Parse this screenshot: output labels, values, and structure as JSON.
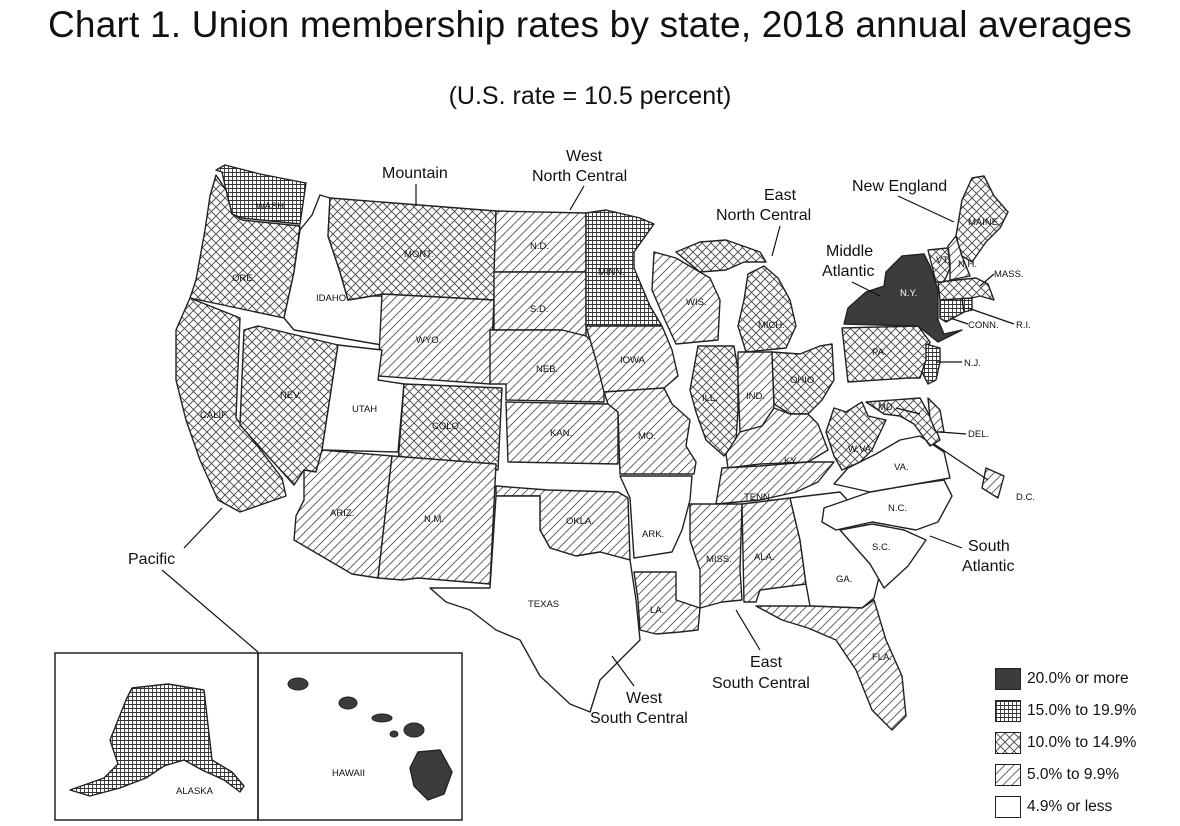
{
  "title": "Chart 1. Union membership rates by state, 2018 annual averages",
  "subtitle": "(U.S. rate = 10.5 percent)",
  "legend": [
    {
      "label": "20.0% or more",
      "pattern": "p4"
    },
    {
      "label": "15.0% to 19.9%",
      "pattern": "p3"
    },
    {
      "label": "10.0% to 14.9%",
      "pattern": "p2"
    },
    {
      "label": "5.0% to 9.9%",
      "pattern": "p1"
    },
    {
      "label": "4.9% or less",
      "pattern": "p0"
    }
  ],
  "regions": {
    "pacific": "Pacific",
    "mountain": "Mountain",
    "wnc_1": "West",
    "wnc_2": "North Central",
    "enc_1": "East",
    "enc_2": "North Central",
    "ne": "New England",
    "ma_1": "Middle",
    "ma_2": "Atlantic",
    "sa_1": "South",
    "sa_2": "Atlantic",
    "esc_1": "East",
    "esc_2": "South Central",
    "wsc_1": "West",
    "wsc_2": "South Central"
  },
  "states": {
    "wash": "WASH.",
    "ore": "ORE.",
    "calif": "CALIF.",
    "idaho": "IDAHO",
    "nev": "NEV.",
    "mont": "MONT.",
    "wyo": "WYO.",
    "utah": "UTAH",
    "colo": "COLO.",
    "ariz": "ARIZ.",
    "nm": "N.M.",
    "nd": "N.D.",
    "sd": "S.D.",
    "neb": "NEB.",
    "kan": "KAN.",
    "okla": "OKLA.",
    "texas": "TEXAS",
    "minn": "MINN.",
    "iowa": "IOWA",
    "mo": "MO.",
    "ark": "ARK.",
    "la": "LA.",
    "wis": "WIS.",
    "mich": "MICH.",
    "ill": "ILL.",
    "ind": "IND.",
    "ohio": "OHIO",
    "ky": "KY.",
    "tenn": "TENN.",
    "miss": "MISS.",
    "ala": "ALA.",
    "ga": "GA.",
    "fla": "FLA.",
    "sc": "S.C.",
    "nc": "N.C.",
    "va": "VA.",
    "wva": "W.VA.",
    "md": "MD.",
    "del": "DEL.",
    "dc": "D.C.",
    "pa": "PA.",
    "nj": "N.J.",
    "ny": "N.Y.",
    "conn": "CONN.",
    "ri": "R.I.",
    "mass": "MASS.",
    "vt": "VT.",
    "nh": "N.H.",
    "maine": "MAINE",
    "alaska": "ALASKA",
    "hawaii": "HAWAII"
  },
  "state_categories": {
    "wash": "15.0% to 19.9%",
    "ore": "10.0% to 14.9%",
    "calif": "10.0% to 14.9%",
    "idaho": "4.9% or less",
    "nev": "10.0% to 14.9%",
    "mont": "10.0% to 14.9%",
    "wyo": "5.0% to 9.9%",
    "utah": "4.9% or less",
    "colo": "10.0% to 14.9%",
    "ariz": "5.0% to 9.9%",
    "nm": "5.0% to 9.9%",
    "nd": "5.0% to 9.9%",
    "sd": "5.0% to 9.9%",
    "neb": "5.0% to 9.9%",
    "kan": "5.0% to 9.9%",
    "okla": "5.0% to 9.9%",
    "texas": "4.9% or less",
    "minn": "15.0% to 19.9%",
    "iowa": "5.0% to 9.9%",
    "mo": "5.0% to 9.9%",
    "ark": "4.9% or less",
    "la": "5.0% to 9.9%",
    "wis": "5.0% to 9.9%",
    "mich": "10.0% to 14.9%",
    "ill": "10.0% to 14.9%",
    "ind": "5.0% to 9.9%",
    "ohio": "10.0% to 14.9%",
    "ky": "5.0% to 9.9%",
    "tenn": "5.0% to 9.9%",
    "miss": "5.0% to 9.9%",
    "ala": "5.0% to 9.9%",
    "ga": "4.9% or less",
    "fla": "5.0% to 9.9%",
    "sc": "4.9% or less",
    "nc": "4.9% or less",
    "va": "4.9% or less",
    "wva": "10.0% to 14.9%",
    "md": "10.0% to 14.9%",
    "del": "5.0% to 9.9%",
    "dc": "5.0% to 9.9%",
    "pa": "10.0% to 14.9%",
    "nj": "15.0% to 19.9%",
    "ny": "20.0% or more",
    "conn": "15.0% to 19.9%",
    "ri": "15.0% to 19.9%",
    "mass": "10.0% to 14.9%",
    "vt": "10.0% to 14.9%",
    "nh": "5.0% to 9.9%",
    "maine": "10.0% to 14.9%",
    "alaska": "15.0% to 19.9%",
    "hawaii": "20.0% or more"
  },
  "colors": {
    "solid": "#3c3c3c",
    "line": "#222222",
    "background": "#ffffff"
  }
}
